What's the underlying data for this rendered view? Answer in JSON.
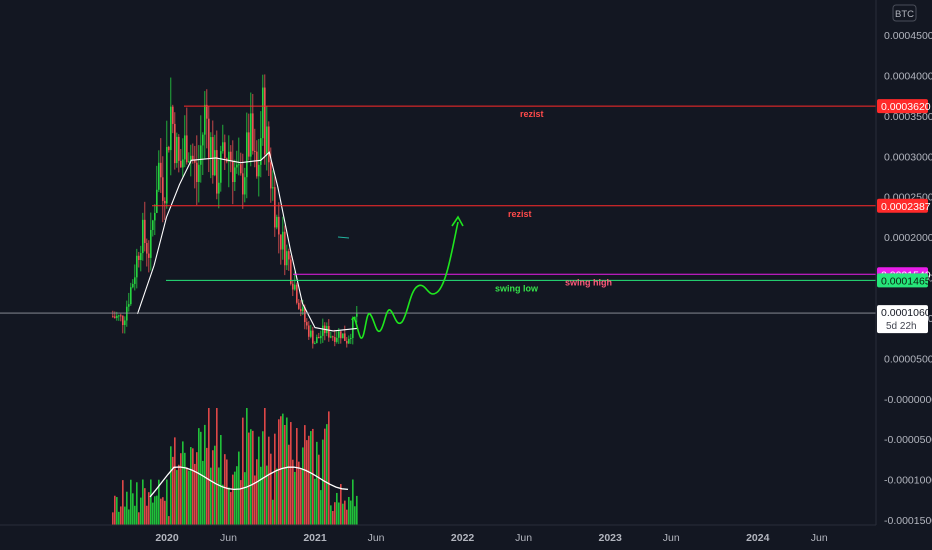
{
  "symbol": "BTC",
  "colors": {
    "background": "#131722",
    "up": "#26d640",
    "down": "#f05454",
    "ma": "#ffffff",
    "resistance": "#ff2a2a",
    "swing_high": "#e91ee9",
    "swing_low": "#26e67a",
    "forecast": "#1ee61e"
  },
  "chart_data": {
    "type": "candlestick",
    "price_axis": {
      "ticks": [
        "0.0004500",
        "0.0004000",
        "0.0003500",
        "0.0003000",
        "0.0002500",
        "0.0002000",
        "0.0001500",
        "0.0001000",
        "0.0000500",
        "-0.0000000",
        "-0.0000500",
        "-0.0001000",
        "-0.0001500"
      ],
      "tick_values": [
        0.00045,
        0.0004,
        0.00035,
        0.0003,
        0.00025,
        0.0002,
        0.00015,
        0.0001,
        5e-05,
        0,
        -5e-05,
        -0.0001,
        -0.00015
      ],
      "ylim": [
        -0.000158,
        0.00048
      ]
    },
    "time_axis": {
      "labels": [
        {
          "text": "2020",
          "bold": true,
          "date": "2020-01-01"
        },
        {
          "text": "Jun",
          "bold": false,
          "date": "2020-06-01"
        },
        {
          "text": "2021",
          "bold": true,
          "date": "2021-01-01"
        },
        {
          "text": "Jun",
          "bold": false,
          "date": "2021-06-01"
        },
        {
          "text": "2022",
          "bold": true,
          "date": "2022-01-01"
        },
        {
          "text": "Jun",
          "bold": false,
          "date": "2022-06-01"
        },
        {
          "text": "2023",
          "bold": true,
          "date": "2023-01-01"
        },
        {
          "text": "Jun",
          "bold": false,
          "date": "2023-06-01"
        },
        {
          "text": "2024",
          "bold": true,
          "date": "2024-01-01"
        },
        {
          "text": "Jun",
          "bold": false,
          "date": "2024-06-01"
        }
      ]
    },
    "price_path": [
      {
        "date": "2019-08-20",
        "close": 0.000102
      },
      {
        "date": "2019-09-15",
        "close": 9.8e-05
      },
      {
        "date": "2019-10-10",
        "close": 0.00015
      },
      {
        "date": "2019-10-30",
        "close": 0.000205
      },
      {
        "date": "2019-11-20",
        "close": 0.00018
      },
      {
        "date": "2019-12-10",
        "close": 0.00029
      },
      {
        "date": "2019-12-25",
        "close": 0.00026
      },
      {
        "date": "2020-01-10",
        "close": 0.00036
      },
      {
        "date": "2020-02-01",
        "close": 0.00028
      },
      {
        "date": "2020-02-20",
        "close": 0.000325
      },
      {
        "date": "2020-03-15",
        "close": 0.00027
      },
      {
        "date": "2020-04-05",
        "close": 0.000358
      },
      {
        "date": "2020-05-01",
        "close": 0.00027
      },
      {
        "date": "2020-06-01",
        "close": 0.00031
      },
      {
        "date": "2020-07-01",
        "close": 0.00026
      },
      {
        "date": "2020-07-25",
        "close": 0.000325
      },
      {
        "date": "2020-08-10",
        "close": 0.000268
      },
      {
        "date": "2020-08-25",
        "close": 0.000355
      },
      {
        "date": "2020-09-10",
        "close": 0.00029
      },
      {
        "date": "2020-10-01",
        "close": 0.00021
      },
      {
        "date": "2020-10-25",
        "close": 0.000175
      },
      {
        "date": "2020-11-20",
        "close": 0.000125
      },
      {
        "date": "2020-12-10",
        "close": 9e-05
      },
      {
        "date": "2021-01-01",
        "close": 7e-05
      },
      {
        "date": "2021-01-25",
        "close": 8.5e-05
      },
      {
        "date": "2021-02-15",
        "close": 7.8e-05
      },
      {
        "date": "2021-03-05",
        "close": 8.2e-05
      },
      {
        "date": "2021-03-20",
        "close": 7.2e-05
      },
      {
        "date": "2021-04-05",
        "close": 9e-05
      },
      {
        "date": "2021-04-15",
        "close": 0.000106
      }
    ],
    "ma_path": [
      {
        "date": "2019-10-20",
        "value": 0.000105
      },
      {
        "date": "2019-11-30",
        "value": 0.000165
      },
      {
        "date": "2019-12-31",
        "value": 0.000225
      },
      {
        "date": "2020-02-01",
        "value": 0.000265
      },
      {
        "date": "2020-03-01",
        "value": 0.000295
      },
      {
        "date": "2020-05-01",
        "value": 0.000298
      },
      {
        "date": "2020-07-01",
        "value": 0.000292
      },
      {
        "date": "2020-08-20",
        "value": 0.000295
      },
      {
        "date": "2020-09-10",
        "value": 0.000305
      },
      {
        "date": "2020-10-01",
        "value": 0.000262
      },
      {
        "date": "2020-11-01",
        "value": 0.000185
      },
      {
        "date": "2020-12-01",
        "value": 0.000118
      },
      {
        "date": "2021-01-01",
        "value": 8.8e-05
      },
      {
        "date": "2021-02-15",
        "value": 8.4e-05
      },
      {
        "date": "2021-04-15",
        "value": 8.7e-05
      }
    ],
    "volume": {
      "max_height_ratio": 1.0,
      "ma_level": 0.47
    },
    "current_price": "0.0001060",
    "countdown": "5d 22h"
  },
  "levels": [
    {
      "name": "rezist-top",
      "value": 0.000362,
      "label": "0.0003620",
      "text": "rezist",
      "color": "#ff2a2a",
      "text_color": "#ff4a4a",
      "badge_text_color": "#ffffff"
    },
    {
      "name": "rezist-mid",
      "value": 0.0002387,
      "label": "0.0002387",
      "text": "rezist",
      "color": "#ff2a2a",
      "text_color": "#ff4a4a",
      "badge_text_color": "#ffffff"
    },
    {
      "name": "swing-high",
      "value": 0.000154,
      "label": "0.0001540",
      "text": "swing high",
      "color": "#e91ee9",
      "text_color": "#ff5a7a",
      "badge_text_color": "#ffffff"
    },
    {
      "name": "swing-low",
      "value": 0.0001465,
      "label": "0.0001465",
      "text": "swing low",
      "color": "#26e67a",
      "text_color": "#34e34a",
      "badge_text_color": "#0b2010"
    }
  ]
}
